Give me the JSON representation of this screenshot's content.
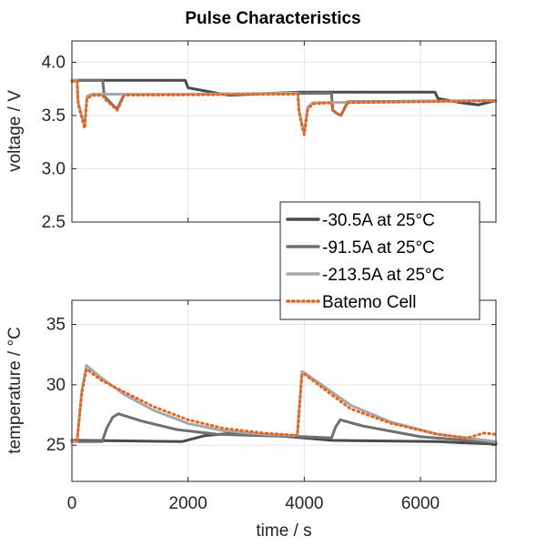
{
  "chart_data": [
    {
      "type": "line",
      "title": "Pulse Characteristics",
      "xlabel": "",
      "ylabel": "voltage / V",
      "xlim": [
        0,
        7300
      ],
      "ylim": [
        2.5,
        4.2
      ],
      "xticks": [
        0,
        2000,
        4000,
        6000
      ],
      "yticks": [
        2.5,
        3.0,
        3.5,
        4.0
      ],
      "ytick_labels": [
        "2.5",
        "3.0",
        "3.5",
        "4.0"
      ],
      "grid": true,
      "series": [
        {
          "name": "-30.5A at 25°C",
          "color": "#4a4a4a",
          "style": "solid",
          "x": [
            0,
            1950,
            2000,
            2400,
            2700,
            3500,
            3950,
            6250,
            6300,
            6700,
            7000,
            7300
          ],
          "y": [
            3.83,
            3.83,
            3.76,
            3.72,
            3.69,
            3.71,
            3.72,
            3.72,
            3.66,
            3.62,
            3.6,
            3.64
          ]
        },
        {
          "name": "-91.5A at 25°C",
          "color": "#707070",
          "style": "solid",
          "x": [
            0,
            530,
            560,
            700,
            780,
            900,
            2000,
            4470,
            4490,
            4560,
            4630,
            4750,
            7300
          ],
          "y": [
            3.83,
            3.83,
            3.68,
            3.6,
            3.56,
            3.7,
            3.7,
            3.71,
            3.55,
            3.52,
            3.5,
            3.63,
            3.64
          ]
        },
        {
          "name": "-213.5A at 25°C",
          "color": "#a8a8a8",
          "style": "solid",
          "x": [
            0,
            90,
            110,
            160,
            220,
            260,
            350,
            2000,
            3890,
            3910,
            3960,
            4000,
            4060,
            4150,
            7300
          ],
          "y": [
            3.83,
            3.83,
            3.62,
            3.52,
            3.4,
            3.68,
            3.7,
            3.7,
            3.71,
            3.55,
            3.42,
            3.34,
            3.58,
            3.62,
            3.64
          ]
        },
        {
          "name": "Batemo Cell",
          "color": "#e8641e",
          "style": "dotted",
          "x": [
            0,
            90,
            110,
            160,
            220,
            260,
            350,
            530,
            560,
            700,
            780,
            900,
            3890,
            3910,
            3960,
            4000,
            4060,
            4150,
            4470,
            4490,
            4560,
            4630,
            4750,
            7300
          ],
          "y": [
            3.82,
            3.82,
            3.6,
            3.5,
            3.38,
            3.66,
            3.69,
            3.69,
            3.66,
            3.59,
            3.55,
            3.69,
            3.7,
            3.54,
            3.4,
            3.32,
            3.56,
            3.61,
            3.62,
            3.55,
            3.52,
            3.5,
            3.62,
            3.64
          ]
        }
      ]
    },
    {
      "type": "line",
      "title": "",
      "xlabel": "time / s",
      "ylabel": "temperature / °C",
      "xlim": [
        0,
        7300
      ],
      "ylim": [
        22,
        37
      ],
      "xticks": [
        0,
        2000,
        4000,
        6000
      ],
      "xtick_labels": [
        "0",
        "2000",
        "4000",
        "6000"
      ],
      "yticks": [
        25,
        30,
        35
      ],
      "ytick_labels": [
        "25",
        "30",
        "35"
      ],
      "grid": true,
      "series": [
        {
          "name": "-30.5A at 25°C",
          "color": "#4a4a4a",
          "style": "solid",
          "x": [
            0,
            1900,
            2300,
            2800,
            3500,
            4000,
            4470,
            6300,
            6700,
            7300
          ],
          "y": [
            25.4,
            25.3,
            25.8,
            26.0,
            25.8,
            25.6,
            25.4,
            25.3,
            25.2,
            25.1
          ]
        },
        {
          "name": "-91.5A at 25°C",
          "color": "#707070",
          "style": "solid",
          "x": [
            0,
            520,
            600,
            700,
            800,
            1200,
            1800,
            2500,
            3200,
            4000,
            4470,
            4540,
            4620,
            5000,
            6000,
            7300
          ],
          "y": [
            25.3,
            25.3,
            26.4,
            27.3,
            27.6,
            27.0,
            26.3,
            25.9,
            25.8,
            25.7,
            25.6,
            26.5,
            27.1,
            26.6,
            25.7,
            25.2
          ]
        },
        {
          "name": "-213.5A at 25°C",
          "color": "#a8a8a8",
          "style": "solid",
          "x": [
            0,
            90,
            170,
            250,
            500,
            900,
            1400,
            2000,
            2600,
            3300,
            3880,
            3960,
            4000,
            4300,
            4800,
            5500,
            6300,
            7300
          ],
          "y": [
            25.3,
            25.3,
            29.5,
            31.6,
            30.6,
            29.2,
            27.9,
            26.8,
            26.2,
            25.9,
            25.8,
            31.1,
            31.0,
            30.0,
            28.3,
            26.9,
            25.9,
            25.3
          ]
        },
        {
          "name": "Batemo Cell",
          "color": "#e8641e",
          "style": "dotted",
          "x": [
            0,
            90,
            170,
            250,
            500,
            900,
            1400,
            2000,
            2600,
            3300,
            3880,
            3960,
            4000,
            4300,
            4800,
            5500,
            6300,
            6800,
            7100,
            7300
          ],
          "y": [
            25.4,
            25.4,
            29.3,
            31.3,
            30.4,
            29.4,
            28.2,
            27.1,
            26.4,
            26.0,
            25.8,
            30.8,
            30.9,
            29.8,
            28.0,
            26.8,
            25.9,
            25.6,
            26.0,
            25.9
          ]
        }
      ]
    }
  ],
  "legend": {
    "position": "right",
    "entries": [
      {
        "label": "-30.5A at 25°C",
        "color": "#4a4a4a",
        "style": "solid"
      },
      {
        "label": "-91.5A at 25°C",
        "color": "#707070",
        "style": "solid"
      },
      {
        "label": "-213.5A at 25°C",
        "color": "#a8a8a8",
        "style": "solid"
      },
      {
        "label": "Batemo Cell",
        "color": "#e8641e",
        "style": "dotted"
      }
    ]
  }
}
